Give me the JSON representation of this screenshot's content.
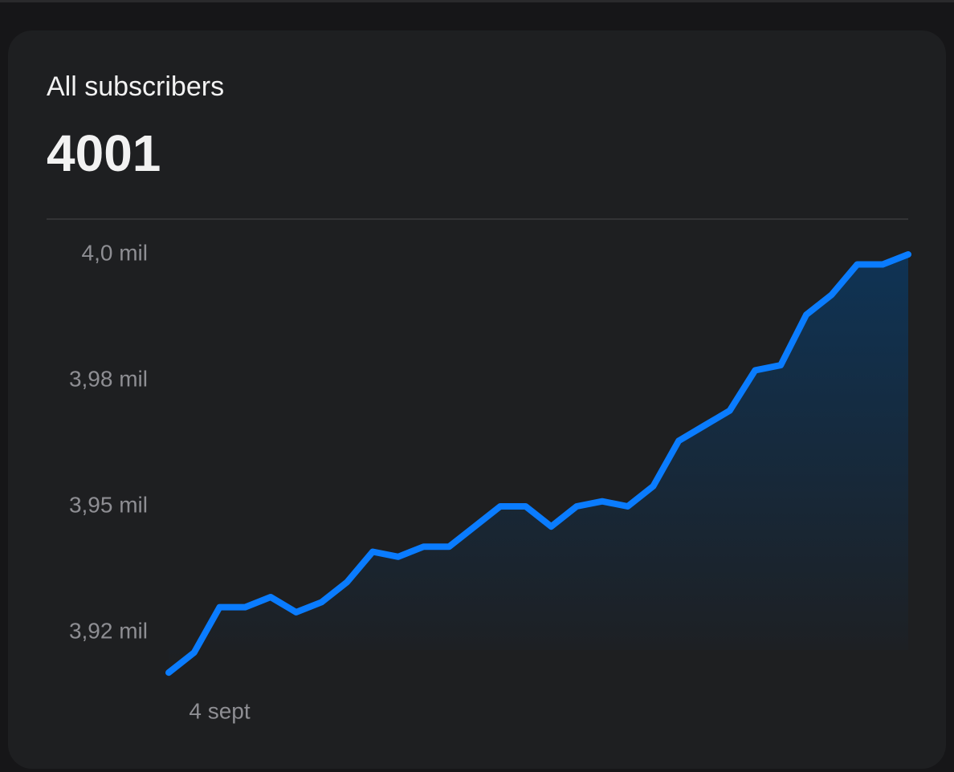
{
  "header": {
    "title": "All subscribers",
    "value": 4001
  },
  "chart_data": {
    "type": "line",
    "color": "#0a7cff",
    "categories": [
      null,
      null,
      "4 sept",
      null,
      null,
      null,
      null,
      null,
      null,
      null,
      null,
      null,
      null,
      null,
      null,
      null,
      null,
      null,
      null,
      null,
      null,
      null,
      null,
      null,
      null,
      null,
      null,
      null,
      null,
      null
    ],
    "values": [
      3917,
      3921,
      3930,
      3930,
      3932,
      3929,
      3931,
      3935,
      3941,
      3940,
      3942,
      3942,
      3946,
      3950,
      3950,
      3946,
      3950,
      3951,
      3950,
      3954,
      3963,
      3966,
      3969,
      3977,
      3978,
      3988,
      3992,
      3998,
      3998,
      4000
    ],
    "ylim": [
      3915,
      4002
    ],
    "yticks": [
      {
        "value": 4000,
        "label": "4,0 mil"
      },
      {
        "value": 3975,
        "label": "3,98 mil"
      },
      {
        "value": 3950,
        "label": "3,95 mil"
      },
      {
        "value": 3925,
        "label": "3,92 mil"
      }
    ],
    "grid": false
  }
}
